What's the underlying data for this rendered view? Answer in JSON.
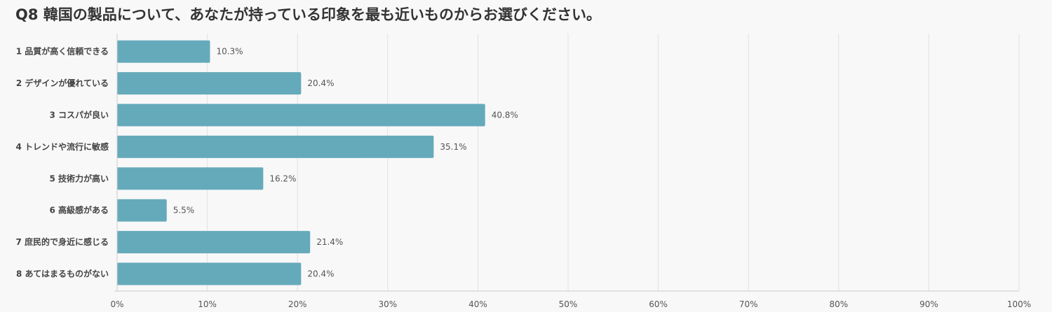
{
  "chart_data": {
    "type": "bar",
    "orientation": "horizontal",
    "title": "Q8 韓国の製品について、あなたが持っている印象を最も近いものからお選びください。",
    "categories": [
      "1 品質が高く信頼できる",
      "2 デザインが優れている",
      "3 コスパが良い",
      "4 トレンドや流行に敏感",
      "5 技術力が高い",
      "6 高級感がある",
      "7 庶民的で身近に感じる",
      "8 あてはまるものがない"
    ],
    "values": [
      10.3,
      20.4,
      40.8,
      35.1,
      16.2,
      5.5,
      21.4,
      20.4
    ],
    "value_labels": [
      "10.3%",
      "20.4%",
      "40.8%",
      "35.1%",
      "16.2%",
      "5.5%",
      "21.4%",
      "20.4%"
    ],
    "x_ticks": [
      "0%",
      "10%",
      "20%",
      "30%",
      "40%",
      "50%",
      "60%",
      "70%",
      "80%",
      "90%",
      "100%"
    ],
    "xlim": [
      0,
      100
    ],
    "grid": true,
    "bar_color": "#65aabb",
    "xlabel": "",
    "ylabel": ""
  }
}
